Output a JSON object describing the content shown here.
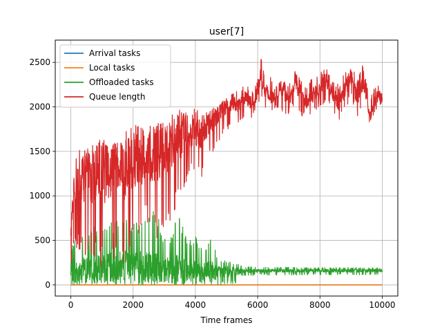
{
  "chart_data": {
    "type": "line",
    "title": "user[7]",
    "xlabel": "Time frames",
    "ylabel": "",
    "xlim": [
      -500,
      10500
    ],
    "ylim": [
      -125,
      2750
    ],
    "xticks": [
      0,
      2000,
      4000,
      6000,
      8000,
      10000
    ],
    "yticks": [
      0,
      500,
      1000,
      1500,
      2000,
      2500
    ],
    "grid": true,
    "legend": "top-left",
    "series": [
      {
        "name": "Arrival tasks",
        "color": "#1f77b4",
        "x": [
          0,
          10000
        ],
        "y": [
          0,
          0
        ]
      },
      {
        "name": "Local tasks",
        "color": "#ff7f0e",
        "x": [
          0,
          1000,
          2000,
          3000,
          4000,
          5000,
          6000,
          7000,
          8000,
          9000,
          10000
        ],
        "y": [
          0,
          0,
          0,
          0,
          0,
          0,
          0,
          0,
          0,
          0,
          0
        ]
      },
      {
        "name": "Offloaded tasks",
        "color": "#2ca02c",
        "x": [
          0,
          250,
          500,
          750,
          1000,
          1250,
          1500,
          1750,
          2000,
          2250,
          2500,
          2750,
          3000,
          3250,
          3500,
          3750,
          4000,
          4250,
          4500,
          4750,
          5000,
          5250,
          5500,
          6000,
          6500,
          7000,
          7500,
          8000,
          8500,
          9000,
          9500,
          10000
        ],
        "y_max": [
          500,
          560,
          620,
          650,
          620,
          700,
          720,
          740,
          700,
          750,
          830,
          850,
          560,
          600,
          850,
          500,
          560,
          400,
          560,
          300,
          270,
          250,
          210,
          200,
          200,
          200,
          195,
          195,
          195,
          195,
          195,
          195
        ],
        "y_min": [
          0,
          0,
          0,
          0,
          0,
          0,
          0,
          0,
          0,
          0,
          0,
          0,
          0,
          0,
          0,
          0,
          0,
          0,
          0,
          0,
          0,
          0,
          100,
          110,
          110,
          110,
          110,
          110,
          110,
          110,
          110,
          110
        ],
        "y_mid": [
          150,
          170,
          180,
          190,
          190,
          200,
          210,
          220,
          220,
          220,
          210,
          200,
          180,
          170,
          160,
          160,
          150,
          150,
          150,
          150,
          150,
          150,
          155,
          160,
          160,
          160,
          160,
          160,
          160,
          160,
          160,
          160
        ]
      },
      {
        "name": "Queue length",
        "color": "#d62728",
        "x": [
          0,
          100,
          200,
          400,
          600,
          800,
          1000,
          1200,
          1400,
          1600,
          1800,
          2000,
          2200,
          2400,
          2600,
          2800,
          3000,
          3200,
          3400,
          3600,
          3800,
          4000,
          4200,
          4400,
          4600,
          4800,
          5000,
          5200,
          5400,
          5600,
          5800,
          6000,
          6100,
          6200,
          6400,
          6600,
          6800,
          7000,
          7200,
          7400,
          7600,
          7800,
          8000,
          8200,
          8400,
          8600,
          8800,
          9000,
          9200,
          9400,
          9600,
          9800,
          10000
        ],
        "y": [
          650,
          1150,
          1200,
          1200,
          1200,
          1250,
          1220,
          1280,
          1300,
          1290,
          1300,
          1350,
          1380,
          1400,
          1420,
          1450,
          1500,
          1550,
          1600,
          1650,
          1700,
          1720,
          1700,
          1800,
          1850,
          1950,
          2000,
          2050,
          2000,
          2100,
          2050,
          2150,
          2400,
          2200,
          2100,
          2150,
          2200,
          2050,
          2250,
          2150,
          2050,
          2150,
          2200,
          2300,
          2150,
          2050,
          2200,
          2350,
          2100,
          2300,
          1900,
          2100,
          2150
        ],
        "y_max": [
          700,
          1200,
          1600,
          1500,
          1550,
          1600,
          1650,
          1620,
          1600,
          1600,
          1750,
          1800,
          1780,
          1750,
          1800,
          1820,
          1850,
          1900,
          1950,
          2000,
          1950,
          2000,
          1900,
          1950,
          2000,
          2050,
          2100,
          2150,
          2200,
          2250,
          2200,
          2300,
          2600,
          2400,
          2350,
          2250,
          2300,
          2250,
          2400,
          2300,
          2250,
          2350,
          2400,
          2450,
          2300,
          2250,
          2400,
          2500,
          2300,
          2500,
          2100,
          2250,
          2250
        ],
        "y_min": [
          150,
          300,
          400,
          350,
          200,
          300,
          100,
          200,
          300,
          250,
          150,
          400,
          500,
          700,
          650,
          500,
          400,
          700,
          900,
          1000,
          1200,
          1300,
          1150,
          1400,
          1500,
          1650,
          1700,
          1800,
          1800,
          1900,
          1850,
          1950,
          2100,
          1950,
          1900,
          2000,
          1950,
          1900,
          2050,
          1900,
          1850,
          1950,
          2000,
          2050,
          1950,
          1850,
          1950,
          2100,
          1850,
          2000,
          1800,
          1950,
          2050
        ]
      }
    ]
  }
}
